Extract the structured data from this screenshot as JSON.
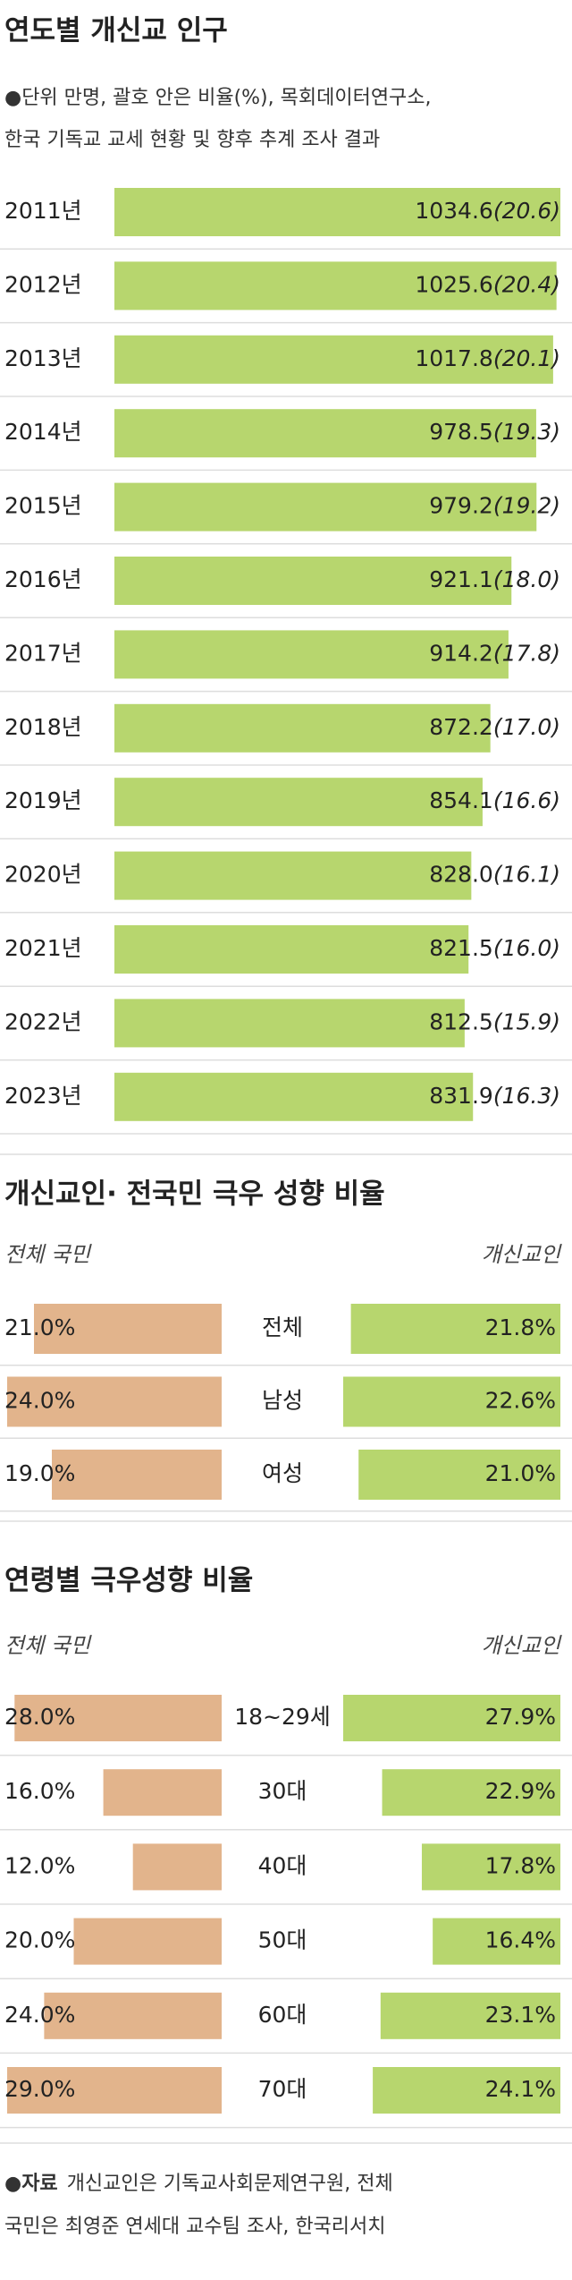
{
  "chart_data": [
    {
      "type": "bar",
      "title": "연도별 개신교 인구",
      "subtitle_lines": [
        "●단위 만명, 괄호 안은 비율(%), 목회데이터연구소,",
        "한국 기독교 교세 현황 및 향후 추계 조사 결과"
      ],
      "categories": [
        "2011년",
        "2012년",
        "2013년",
        "2014년",
        "2015년",
        "2016년",
        "2017년",
        "2018년",
        "2019년",
        "2020년",
        "2021년",
        "2022년",
        "2023년"
      ],
      "values": [
        1034.6,
        1025.6,
        1017.8,
        978.5,
        979.2,
        921.1,
        914.2,
        872.2,
        854.1,
        828.0,
        821.5,
        812.5,
        831.9
      ],
      "value_labels": [
        "1034.6",
        "1025.6",
        "1017.8",
        "978.5",
        "979.2",
        "921.1",
        "914.2",
        "872.2",
        "854.1",
        "828.0",
        "821.5",
        "812.5",
        "831.9"
      ],
      "share_labels": [
        "(20.6)",
        "(20.4)",
        "(20.1)",
        "(19.3)",
        "(19.2)",
        "(18.0)",
        "(17.8)",
        "(17.0)",
        "(16.6)",
        "(16.1)",
        "(16.0)",
        "(15.9)",
        "(16.3)"
      ],
      "color": "#b7d66e"
    },
    {
      "type": "butterfly",
      "title": "개신교인· 전국민 극우 성향 비율",
      "categories": [
        "전체",
        "남성",
        "여성"
      ],
      "series": [
        {
          "name": "전체 국민",
          "color": "#e2b48c",
          "values": [
            21.0,
            24.0,
            19.0
          ],
          "value_labels": [
            "21.0%",
            "24.0%",
            "19.0%"
          ]
        },
        {
          "name": "개신교인",
          "color": "#b7d66e",
          "values": [
            21.8,
            22.6,
            21.0
          ],
          "value_labels": [
            "21.8%",
            "22.6%",
            "21.0%"
          ]
        }
      ]
    },
    {
      "type": "butterfly",
      "title": "연령별 극우성향 비율",
      "categories": [
        "18~29세",
        "30대",
        "40대",
        "50대",
        "60대",
        "70대"
      ],
      "series": [
        {
          "name": "전체 국민",
          "color": "#e2b48c",
          "values": [
            28.0,
            16.0,
            12.0,
            20.0,
            24.0,
            29.0
          ],
          "value_labels": [
            "28.0%",
            "16.0%",
            "12.0%",
            "20.0%",
            "24.0%",
            "29.0%"
          ]
        },
        {
          "name": "개신교인",
          "color": "#b7d66e",
          "values": [
            27.9,
            22.9,
            17.8,
            16.4,
            23.1,
            24.1
          ],
          "value_labels": [
            "27.9%",
            "22.9%",
            "17.8%",
            "16.4%",
            "23.1%",
            "24.1%"
          ]
        }
      ]
    }
  ],
  "source": {
    "label": "●자료",
    "lines": [
      "개신교인은 기독교사회문제연구원, 전체",
      "국민은 최영준 연세대 교수팀 조사, 한국리서치"
    ]
  }
}
